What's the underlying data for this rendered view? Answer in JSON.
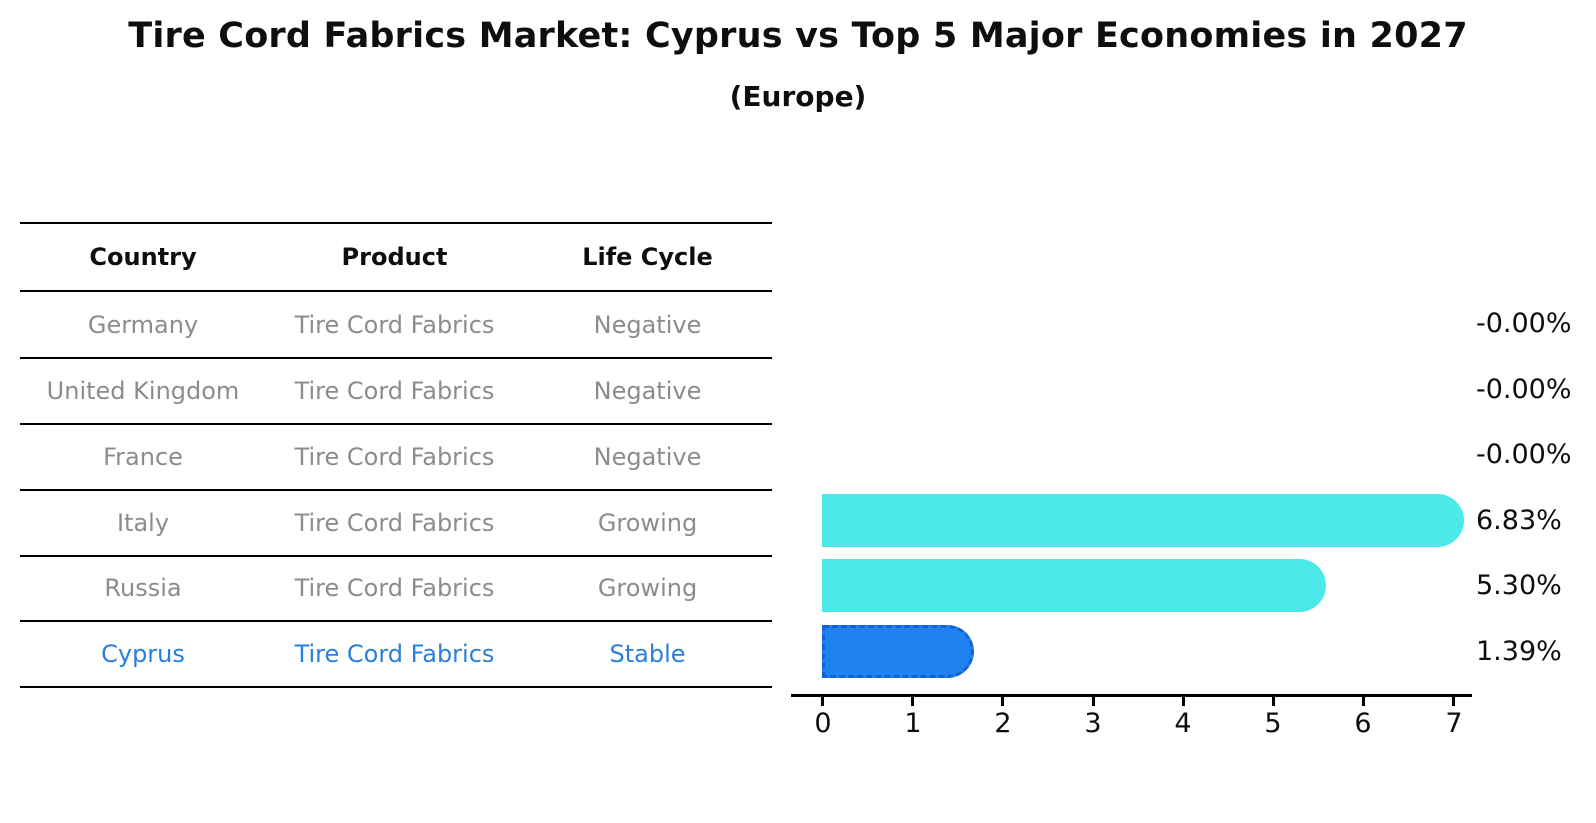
{
  "title": "Tire Cord Fabrics Market: Cyprus vs Top 5 Major Economies in 2027",
  "subtitle": "(Europe)",
  "table": {
    "headers": [
      "Country",
      "Product",
      "Life Cycle"
    ],
    "rows": [
      {
        "country": "Germany",
        "product": "Tire Cord Fabrics",
        "life_cycle": "Negative",
        "highlighted": false
      },
      {
        "country": "United Kingdom",
        "product": "Tire Cord Fabrics",
        "life_cycle": "Negative",
        "highlighted": false
      },
      {
        "country": "France",
        "product": "Tire Cord Fabrics",
        "life_cycle": "Negative",
        "highlighted": false
      },
      {
        "country": "Italy",
        "product": "Tire Cord Fabrics",
        "life_cycle": "Growing",
        "highlighted": false
      },
      {
        "country": "Russia",
        "product": "Tire Cord Fabrics",
        "life_cycle": "Growing",
        "highlighted": false
      },
      {
        "country": "Cyprus",
        "product": "Tire Cord Fabrics",
        "life_cycle": "Stable",
        "highlighted": true
      }
    ]
  },
  "chart_data": {
    "type": "bar",
    "orientation": "horizontal",
    "title": "Tire Cord Fabrics Market: Cyprus vs Top 5 Major Economies in 2027",
    "subtitle": "(Europe)",
    "categories": [
      "Germany",
      "United Kingdom",
      "France",
      "Italy",
      "Russia",
      "Cyprus"
    ],
    "values": [
      -0.0,
      -0.0,
      -0.0,
      6.83,
      5.3,
      1.39
    ],
    "value_labels": [
      "-0.00%",
      "-0.00%",
      "-0.00%",
      "6.83%",
      "5.30%",
      "1.39%"
    ],
    "xlabel": "",
    "ylabel": "",
    "xticks": [
      "0",
      "1",
      "2",
      "3",
      "4",
      "5",
      "6",
      "7"
    ],
    "xlim": [
      -0.35,
      7.2
    ],
    "grid": false,
    "legend": false,
    "highlight_category": "Cyprus",
    "bar_unit_note": "values are percentages (CAGR-style), bars drawn for positive values only"
  },
  "colors": {
    "bar_default": "#4de9e9",
    "bar_highlight": "#1e82f0",
    "bar_highlight_edge": "#1262d8",
    "text_highlight": "#2a7fd8",
    "text_gray": "#8c8c8c",
    "text_black": "#0e0e0e"
  }
}
